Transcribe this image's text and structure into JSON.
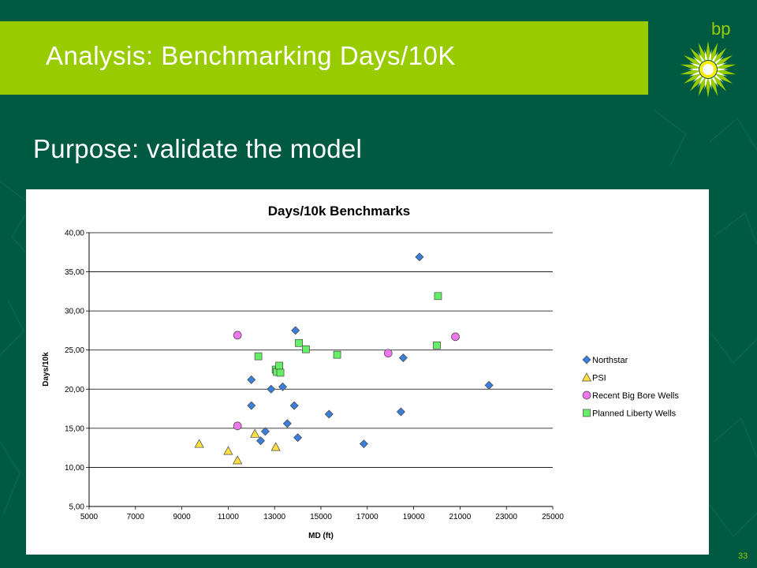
{
  "slide": {
    "title": "Analysis: Benchmarking Days/10K",
    "subtitle": "Purpose: validate the model",
    "logo_text": "bp",
    "slide_number": "33",
    "colors": {
      "background": "#005a41",
      "title_bar": "#99cc00",
      "logo": "#99cc00"
    }
  },
  "chart_data": {
    "type": "scatter",
    "title": "Days/10k Benchmarks",
    "xlabel": "MD (ft)",
    "ylabel": "Days/10k",
    "xlim": [
      5000,
      25000
    ],
    "ylim": [
      5,
      40
    ],
    "x_ticks": [
      "5000",
      "7000",
      "9000",
      "11000",
      "13000",
      "15000",
      "17000",
      "19000",
      "21000",
      "23000",
      "25000"
    ],
    "y_ticks": [
      "5,00",
      "10,00",
      "15,00",
      "20,00",
      "25,00",
      "30,00",
      "35,00",
      "40,00"
    ],
    "grid": "horizontal",
    "legend_position": "right",
    "series": [
      {
        "name": "Northstar",
        "marker": "diamond",
        "color": "#3a7fd9",
        "points": [
          [
            12000,
            21.2
          ],
          [
            12000,
            17.9
          ],
          [
            12400,
            13.4
          ],
          [
            12600,
            14.6
          ],
          [
            12850,
            20.0
          ],
          [
            13350,
            20.3
          ],
          [
            13550,
            15.6
          ],
          [
            13850,
            17.9
          ],
          [
            13900,
            27.5
          ],
          [
            14000,
            13.8
          ],
          [
            15350,
            16.8
          ],
          [
            16850,
            13.0
          ],
          [
            18450,
            17.1
          ],
          [
            18550,
            24.0
          ],
          [
            19250,
            36.9
          ],
          [
            22250,
            20.5
          ]
        ]
      },
      {
        "name": "PSI",
        "marker": "triangle",
        "color": "#ffe040",
        "points": [
          [
            9750,
            13.0
          ],
          [
            11000,
            12.1
          ],
          [
            11400,
            10.9
          ],
          [
            12150,
            14.3
          ],
          [
            13050,
            12.6
          ]
        ]
      },
      {
        "name": "Recent Big Bore Wells",
        "marker": "circle",
        "color": "#ee77ee",
        "points": [
          [
            11400,
            26.9
          ],
          [
            11400,
            15.3
          ],
          [
            17900,
            24.6
          ],
          [
            20800,
            26.7
          ]
        ]
      },
      {
        "name": "Planned Liberty Wells",
        "marker": "square",
        "color": "#66ee66",
        "points": [
          [
            12300,
            24.2
          ],
          [
            13050,
            22.5
          ],
          [
            13100,
            22.2
          ],
          [
            13200,
            23.0
          ],
          [
            13250,
            22.1
          ],
          [
            14050,
            25.9
          ],
          [
            14350,
            25.1
          ],
          [
            15700,
            24.4
          ],
          [
            20000,
            25.6
          ],
          [
            20050,
            31.9
          ]
        ]
      }
    ]
  }
}
